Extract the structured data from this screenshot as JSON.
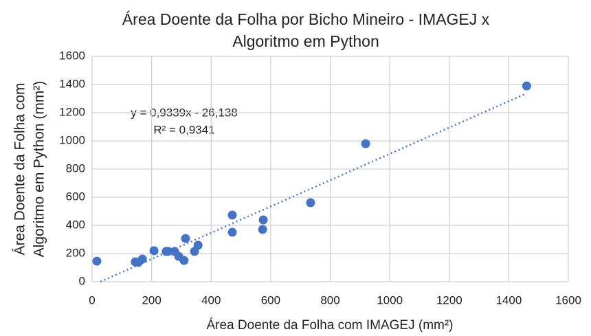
{
  "chart_data": {
    "type": "scatter",
    "title": [
      "Área Doente da Folha por Bicho Mineiro - IMAGEJ x",
      "Algoritmo em Python"
    ],
    "x_label": "Área Doente da Folha com IMAGEJ (mm²)",
    "y_label": [
      "Área Doente da Folha com",
      "Algoritmo em Python (mm²)"
    ],
    "annotations": [
      "y = 0,9339x - 26,138",
      "R² = 0,9341"
    ],
    "x": [
      16,
      145,
      155,
      169,
      208,
      249,
      256,
      277,
      291,
      309,
      314,
      344,
      356,
      471,
      471,
      575,
      573,
      734,
      919,
      1460
    ],
    "series": [
      {
        "name": "Área Doente",
        "color": "#4472c4",
        "values": [
          146,
          141,
          137,
          161,
          220,
          215,
          215,
          215,
          180,
          151,
          307,
          215,
          259,
          473,
          351,
          439,
          371,
          561,
          980,
          1390
        ]
      }
    ],
    "trendline": {
      "slope": 0.9339,
      "intercept": -26.138
    },
    "xlim": [
      0,
      1600
    ],
    "xticks": [
      0,
      200,
      400,
      600,
      800,
      1000,
      1200,
      1400,
      1600
    ],
    "ylim": [
      0,
      1600
    ],
    "yticks": [
      0,
      200,
      400,
      600,
      800,
      1000,
      1200,
      1400,
      1600
    ],
    "grid": true
  }
}
